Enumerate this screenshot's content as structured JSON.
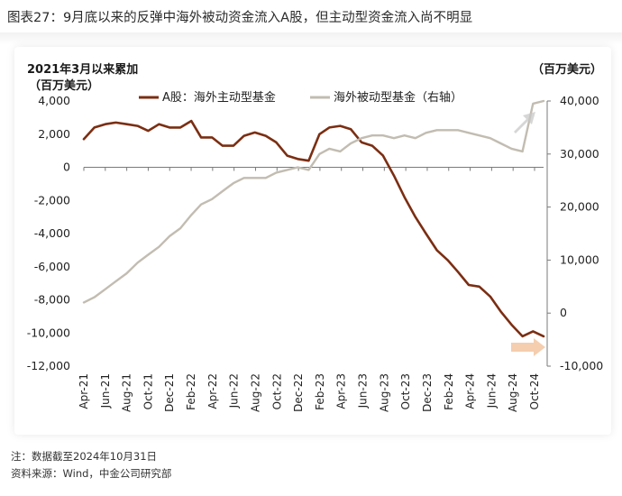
{
  "figure_title": "图表27：9月底以来的反弹中海外被动资金流入A股，但主动型资金流入尚不明显",
  "note": "注：数据截至2024年10月31日",
  "source": "资料来源：Wind，中金公司研究部",
  "colors": {
    "left_series": "#7b2e12",
    "right_series": "#c2bcb1",
    "arrow": "#f3c9a6",
    "arrow_up": "#c8c8c8"
  },
  "chart_data": {
    "type": "line",
    "subtitle": "2021年3月以来累加",
    "left_unit": "（百万美元）",
    "right_unit": "（百万美元）",
    "x_tick_labels": [
      "Apr-21",
      "Jun-21",
      "Aug-21",
      "Oct-21",
      "Dec-21",
      "Feb-22",
      "Apr-22",
      "Jun-22",
      "Aug-22",
      "Oct-22",
      "Dec-22",
      "Feb-23",
      "Apr-23",
      "Jun-23",
      "Aug-23",
      "Oct-23",
      "Dec-23",
      "Feb-24",
      "Apr-24",
      "Jun-24",
      "Aug-24",
      "Oct-24"
    ],
    "ylim_left": [
      -12000,
      4000
    ],
    "yticks_left": [
      4000,
      2000,
      0,
      -2000,
      -4000,
      -6000,
      -8000,
      -10000,
      -12000
    ],
    "yticks_left_labels": [
      "4,000",
      "2,000",
      "0",
      "-2,000",
      "-4,000",
      "-6,000",
      "-8,000",
      "-10,000",
      "-12,000"
    ],
    "ylim_right": [
      -10000,
      40000
    ],
    "yticks_right": [
      40000,
      30000,
      20000,
      10000,
      0,
      -10000
    ],
    "yticks_right_labels": [
      "40,000",
      "30,000",
      "20,000",
      "10,000",
      "0",
      "-10,000"
    ],
    "series": [
      {
        "name": "A股：海外主动型基金",
        "axis": "left",
        "x": [
          "2021-04",
          "2021-05",
          "2021-06",
          "2021-07",
          "2021-08",
          "2021-09",
          "2021-10",
          "2021-11",
          "2021-12",
          "2022-01",
          "2022-02",
          "2022-03",
          "2022-04",
          "2022-05",
          "2022-06",
          "2022-07",
          "2022-08",
          "2022-09",
          "2022-10",
          "2022-11",
          "2022-12",
          "2023-01",
          "2023-02",
          "2023-03",
          "2023-04",
          "2023-05",
          "2023-06",
          "2023-07",
          "2023-08",
          "2023-09",
          "2023-10",
          "2023-11",
          "2023-12",
          "2024-01",
          "2024-02",
          "2024-03",
          "2024-04",
          "2024-05",
          "2024-06",
          "2024-07",
          "2024-08",
          "2024-09",
          "2024-10",
          "2024-10-31"
        ],
        "y": [
          1700,
          2400,
          2600,
          2700,
          2600,
          2500,
          2200,
          2600,
          2400,
          2400,
          2800,
          1800,
          1800,
          1300,
          1300,
          1900,
          2100,
          1900,
          1500,
          700,
          500,
          400,
          2000,
          2400,
          2500,
          2300,
          1500,
          1300,
          700,
          -500,
          -1800,
          -3000,
          -4000,
          -5000,
          -5600,
          -6300,
          -7100,
          -7200,
          -7800,
          -8700,
          -9500,
          -10200,
          -9900,
          -10200
        ]
      },
      {
        "name": "海外被动型基金（右轴）",
        "axis": "right",
        "x": [
          "2021-04",
          "2021-05",
          "2021-06",
          "2021-07",
          "2021-08",
          "2021-09",
          "2021-10",
          "2021-11",
          "2021-12",
          "2022-01",
          "2022-02",
          "2022-03",
          "2022-04",
          "2022-05",
          "2022-06",
          "2022-07",
          "2022-08",
          "2022-09",
          "2022-10",
          "2022-11",
          "2022-12",
          "2023-01",
          "2023-02",
          "2023-03",
          "2023-04",
          "2023-05",
          "2023-06",
          "2023-07",
          "2023-08",
          "2023-09",
          "2023-10",
          "2023-11",
          "2023-12",
          "2024-01",
          "2024-02",
          "2024-03",
          "2024-04",
          "2024-05",
          "2024-06",
          "2024-07",
          "2024-08",
          "2024-09",
          "2024-10",
          "2024-10-31"
        ],
        "y": [
          2000,
          3000,
          4500,
          6000,
          7500,
          9500,
          11000,
          12500,
          14500,
          16000,
          18500,
          20500,
          21500,
          23000,
          24500,
          25500,
          25500,
          25500,
          26500,
          27000,
          27500,
          27000,
          30000,
          31000,
          30500,
          32000,
          33000,
          33500,
          33500,
          33000,
          33500,
          33000,
          34000,
          34500,
          34500,
          34500,
          34000,
          33500,
          33000,
          32000,
          31000,
          30500,
          39500,
          40000
        ]
      }
    ],
    "arrows": [
      "up-right",
      "right"
    ],
    "grid": false,
    "legend_position": "top"
  }
}
